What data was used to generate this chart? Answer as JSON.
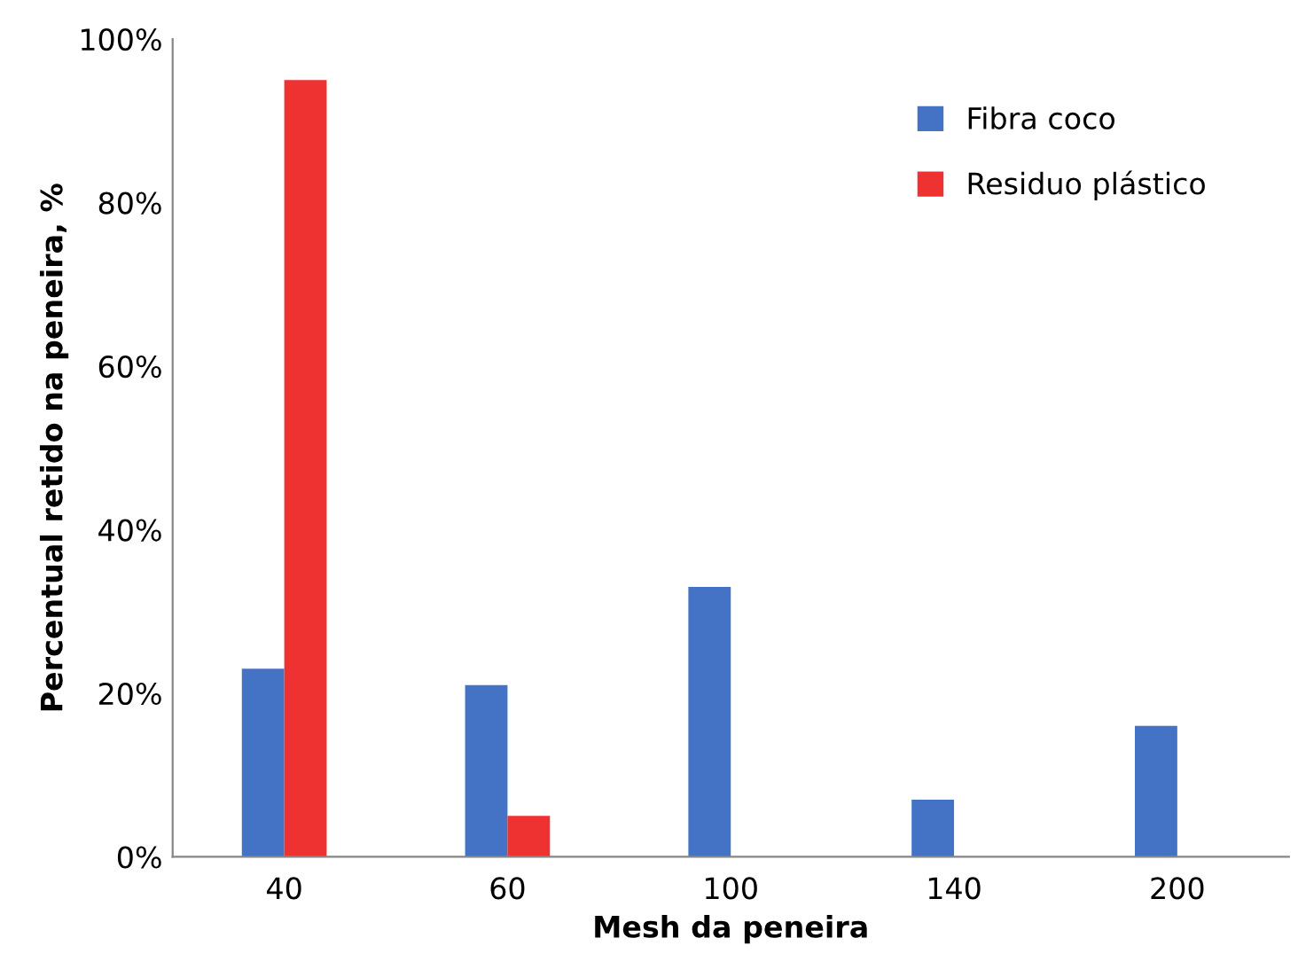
{
  "chart_data": {
    "type": "bar",
    "xlabel": "Mesh da peneira",
    "ylabel": "Percentual retido na peneira, %",
    "categories": [
      "40",
      "60",
      "100",
      "140",
      "200"
    ],
    "series": [
      {
        "name": "Fibra coco",
        "color": "#4472c4",
        "values": [
          23,
          21,
          33,
          7,
          16
        ]
      },
      {
        "name": "Residuo plástico",
        "color": "#ee3231",
        "values": [
          95,
          5,
          0,
          0,
          0
        ]
      }
    ],
    "ylim": [
      0,
      100
    ],
    "yticks": [
      {
        "value": 0,
        "label": "0%"
      },
      {
        "value": 20,
        "label": "20%"
      },
      {
        "value": 40,
        "label": "40%"
      },
      {
        "value": 60,
        "label": "60%"
      },
      {
        "value": 80,
        "label": "80%"
      },
      {
        "value": 100,
        "label": "100%"
      }
    ],
    "grid": false,
    "legend": "top right"
  }
}
